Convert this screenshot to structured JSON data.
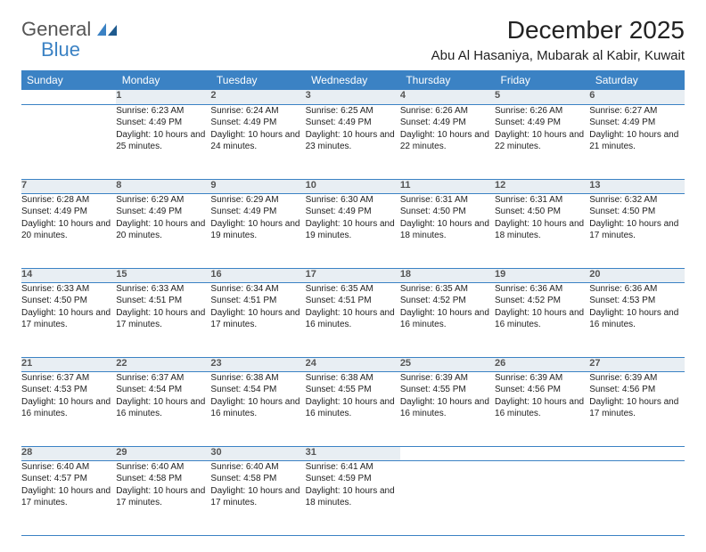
{
  "logo": {
    "text1": "General",
    "text2": "Blue"
  },
  "title": "December 2025",
  "location": "Abu Al Hasaniya, Mubarak al Kabir, Kuwait",
  "colors": {
    "header_bg": "#3b82c4",
    "header_text": "#ffffff",
    "daynum_bg": "#e8eef3",
    "daynum_text": "#555555",
    "body_text": "#222222",
    "border": "#3b82c4",
    "page_bg": "#ffffff"
  },
  "days": [
    "Sunday",
    "Monday",
    "Tuesday",
    "Wednesday",
    "Thursday",
    "Friday",
    "Saturday"
  ],
  "weeks": [
    [
      {
        "n": "",
        "sr": "",
        "ss": "",
        "dl": ""
      },
      {
        "n": "1",
        "sr": "Sunrise: 6:23 AM",
        "ss": "Sunset: 4:49 PM",
        "dl": "Daylight: 10 hours and 25 minutes."
      },
      {
        "n": "2",
        "sr": "Sunrise: 6:24 AM",
        "ss": "Sunset: 4:49 PM",
        "dl": "Daylight: 10 hours and 24 minutes."
      },
      {
        "n": "3",
        "sr": "Sunrise: 6:25 AM",
        "ss": "Sunset: 4:49 PM",
        "dl": "Daylight: 10 hours and 23 minutes."
      },
      {
        "n": "4",
        "sr": "Sunrise: 6:26 AM",
        "ss": "Sunset: 4:49 PM",
        "dl": "Daylight: 10 hours and 22 minutes."
      },
      {
        "n": "5",
        "sr": "Sunrise: 6:26 AM",
        "ss": "Sunset: 4:49 PM",
        "dl": "Daylight: 10 hours and 22 minutes."
      },
      {
        "n": "6",
        "sr": "Sunrise: 6:27 AM",
        "ss": "Sunset: 4:49 PM",
        "dl": "Daylight: 10 hours and 21 minutes."
      }
    ],
    [
      {
        "n": "7",
        "sr": "Sunrise: 6:28 AM",
        "ss": "Sunset: 4:49 PM",
        "dl": "Daylight: 10 hours and 20 minutes."
      },
      {
        "n": "8",
        "sr": "Sunrise: 6:29 AM",
        "ss": "Sunset: 4:49 PM",
        "dl": "Daylight: 10 hours and 20 minutes."
      },
      {
        "n": "9",
        "sr": "Sunrise: 6:29 AM",
        "ss": "Sunset: 4:49 PM",
        "dl": "Daylight: 10 hours and 19 minutes."
      },
      {
        "n": "10",
        "sr": "Sunrise: 6:30 AM",
        "ss": "Sunset: 4:49 PM",
        "dl": "Daylight: 10 hours and 19 minutes."
      },
      {
        "n": "11",
        "sr": "Sunrise: 6:31 AM",
        "ss": "Sunset: 4:50 PM",
        "dl": "Daylight: 10 hours and 18 minutes."
      },
      {
        "n": "12",
        "sr": "Sunrise: 6:31 AM",
        "ss": "Sunset: 4:50 PM",
        "dl": "Daylight: 10 hours and 18 minutes."
      },
      {
        "n": "13",
        "sr": "Sunrise: 6:32 AM",
        "ss": "Sunset: 4:50 PM",
        "dl": "Daylight: 10 hours and 17 minutes."
      }
    ],
    [
      {
        "n": "14",
        "sr": "Sunrise: 6:33 AM",
        "ss": "Sunset: 4:50 PM",
        "dl": "Daylight: 10 hours and 17 minutes."
      },
      {
        "n": "15",
        "sr": "Sunrise: 6:33 AM",
        "ss": "Sunset: 4:51 PM",
        "dl": "Daylight: 10 hours and 17 minutes."
      },
      {
        "n": "16",
        "sr": "Sunrise: 6:34 AM",
        "ss": "Sunset: 4:51 PM",
        "dl": "Daylight: 10 hours and 17 minutes."
      },
      {
        "n": "17",
        "sr": "Sunrise: 6:35 AM",
        "ss": "Sunset: 4:51 PM",
        "dl": "Daylight: 10 hours and 16 minutes."
      },
      {
        "n": "18",
        "sr": "Sunrise: 6:35 AM",
        "ss": "Sunset: 4:52 PM",
        "dl": "Daylight: 10 hours and 16 minutes."
      },
      {
        "n": "19",
        "sr": "Sunrise: 6:36 AM",
        "ss": "Sunset: 4:52 PM",
        "dl": "Daylight: 10 hours and 16 minutes."
      },
      {
        "n": "20",
        "sr": "Sunrise: 6:36 AM",
        "ss": "Sunset: 4:53 PM",
        "dl": "Daylight: 10 hours and 16 minutes."
      }
    ],
    [
      {
        "n": "21",
        "sr": "Sunrise: 6:37 AM",
        "ss": "Sunset: 4:53 PM",
        "dl": "Daylight: 10 hours and 16 minutes."
      },
      {
        "n": "22",
        "sr": "Sunrise: 6:37 AM",
        "ss": "Sunset: 4:54 PM",
        "dl": "Daylight: 10 hours and 16 minutes."
      },
      {
        "n": "23",
        "sr": "Sunrise: 6:38 AM",
        "ss": "Sunset: 4:54 PM",
        "dl": "Daylight: 10 hours and 16 minutes."
      },
      {
        "n": "24",
        "sr": "Sunrise: 6:38 AM",
        "ss": "Sunset: 4:55 PM",
        "dl": "Daylight: 10 hours and 16 minutes."
      },
      {
        "n": "25",
        "sr": "Sunrise: 6:39 AM",
        "ss": "Sunset: 4:55 PM",
        "dl": "Daylight: 10 hours and 16 minutes."
      },
      {
        "n": "26",
        "sr": "Sunrise: 6:39 AM",
        "ss": "Sunset: 4:56 PM",
        "dl": "Daylight: 10 hours and 16 minutes."
      },
      {
        "n": "27",
        "sr": "Sunrise: 6:39 AM",
        "ss": "Sunset: 4:56 PM",
        "dl": "Daylight: 10 hours and 17 minutes."
      }
    ],
    [
      {
        "n": "28",
        "sr": "Sunrise: 6:40 AM",
        "ss": "Sunset: 4:57 PM",
        "dl": "Daylight: 10 hours and 17 minutes."
      },
      {
        "n": "29",
        "sr": "Sunrise: 6:40 AM",
        "ss": "Sunset: 4:58 PM",
        "dl": "Daylight: 10 hours and 17 minutes."
      },
      {
        "n": "30",
        "sr": "Sunrise: 6:40 AM",
        "ss": "Sunset: 4:58 PM",
        "dl": "Daylight: 10 hours and 17 minutes."
      },
      {
        "n": "31",
        "sr": "Sunrise: 6:41 AM",
        "ss": "Sunset: 4:59 PM",
        "dl": "Daylight: 10 hours and 18 minutes."
      },
      {
        "n": "",
        "sr": "",
        "ss": "",
        "dl": ""
      },
      {
        "n": "",
        "sr": "",
        "ss": "",
        "dl": ""
      },
      {
        "n": "",
        "sr": "",
        "ss": "",
        "dl": ""
      }
    ]
  ]
}
